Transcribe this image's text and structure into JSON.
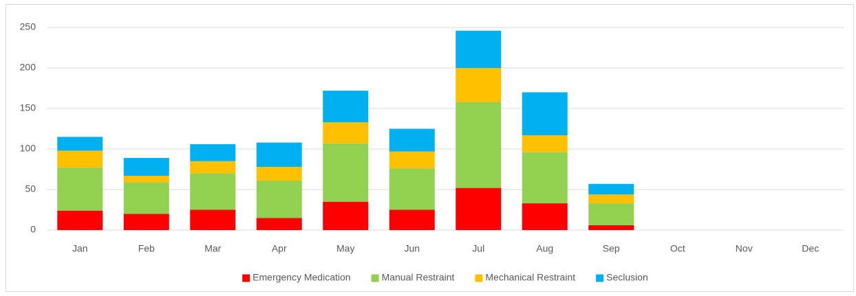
{
  "chart_data": {
    "type": "stacked_bar",
    "categories": [
      "Jan",
      "Feb",
      "Mar",
      "Apr",
      "May",
      "Jun",
      "Jul",
      "Aug",
      "Sep",
      "Oct",
      "Nov",
      "Dec"
    ],
    "series": [
      {
        "name": "Emergency Medication",
        "color": "#ff0000",
        "values": [
          24,
          20,
          25,
          15,
          35,
          25,
          52,
          33,
          6,
          null,
          null,
          null
        ]
      },
      {
        "name": "Manual Restraint",
        "color": "#92d050",
        "values": [
          53,
          39,
          45,
          46,
          72,
          51,
          106,
          63,
          27,
          null,
          null,
          null
        ]
      },
      {
        "name": "Mechanical Restraint",
        "color": "#ffc000",
        "values": [
          21,
          8,
          15,
          17,
          26,
          21,
          42,
          21,
          11,
          null,
          null,
          null
        ]
      },
      {
        "name": "Seclusion",
        "color": "#00b0f0",
        "values": [
          17,
          22,
          21,
          30,
          39,
          28,
          46,
          53,
          13,
          null,
          null,
          null
        ]
      }
    ],
    "ylim": [
      0,
      250
    ],
    "yticks": [
      0,
      50,
      100,
      150,
      200,
      250
    ],
    "grid": true,
    "legend": "bottom"
  }
}
